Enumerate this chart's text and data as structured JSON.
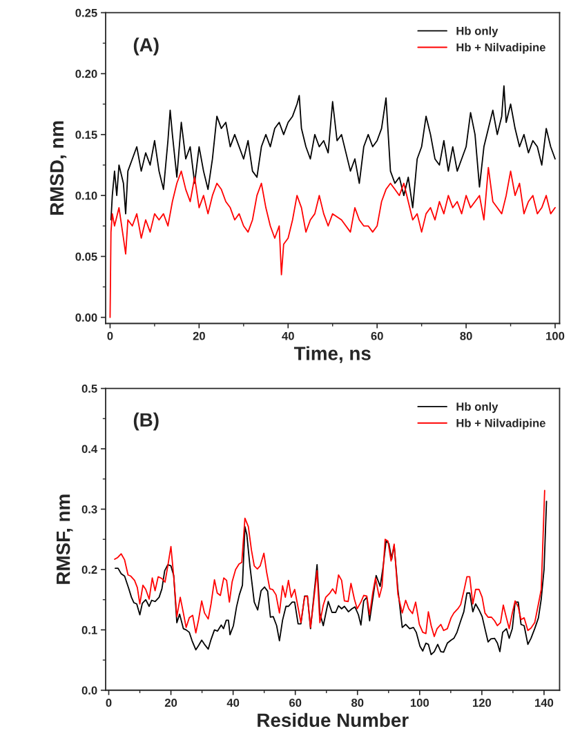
{
  "chart_data": [
    {
      "type": "line",
      "xlabel": "Time, ns",
      "ylabel": "RMSD, nm",
      "annotations": [
        "(A)"
      ],
      "legend": "top right",
      "xlim": [
        -1,
        101
      ],
      "ylim": [
        -0.005,
        0.25
      ],
      "xticks": [
        0,
        {
          "value": 10,
          "label": null
        },
        20,
        {
          "value": 30,
          "label": null
        },
        40,
        {
          "value": 50,
          "label": null
        },
        60,
        {
          "value": 70,
          "label": null
        },
        80,
        {
          "value": 90,
          "label": null
        },
        100
      ],
      "yticks": [
        {
          "value": 0,
          "label": "0.00"
        },
        {
          "value": 0.025,
          "label": null
        },
        {
          "value": 0.05,
          "label": "0.05"
        },
        {
          "value": 0.075,
          "label": null
        },
        {
          "value": 0.1,
          "label": "0.10"
        },
        {
          "value": 0.125,
          "label": null
        },
        {
          "value": 0.15,
          "label": "0.15"
        },
        {
          "value": 0.175,
          "label": null
        },
        {
          "value": 0.2,
          "label": "0.20"
        },
        {
          "value": 0.225,
          "label": null
        },
        {
          "value": 0.25,
          "label": "0.25"
        }
      ],
      "series": [
        {
          "name": "Hb only",
          "color": "#000000",
          "x": [
            0.2,
            0.5,
            1,
            1.5,
            2,
            3,
            3.5,
            4,
            5,
            6,
            7,
            8,
            9,
            10,
            11,
            12,
            13,
            13.5,
            14,
            15,
            16,
            17,
            18,
            19,
            20,
            21,
            22,
            23,
            24,
            25,
            26,
            27,
            28,
            30,
            31,
            32,
            33,
            34,
            35,
            36,
            37,
            38,
            39,
            40,
            41,
            42,
            42.5,
            43,
            44,
            45,
            46,
            47,
            48,
            49,
            50,
            51,
            52,
            53,
            54,
            55,
            56,
            57,
            58,
            59,
            60,
            61,
            62,
            63,
            64,
            65,
            66,
            67,
            68,
            69,
            70,
            71,
            72,
            73,
            74,
            75,
            76,
            77,
            78,
            79,
            80,
            81,
            82,
            83,
            84,
            85,
            86,
            87,
            88,
            88.5,
            89,
            90,
            91,
            92,
            93,
            94,
            95,
            96,
            97,
            98,
            99,
            100
          ],
          "values": [
            0.08,
            0.1,
            0.12,
            0.1,
            0.125,
            0.11,
            0.085,
            0.12,
            0.13,
            0.14,
            0.12,
            0.135,
            0.125,
            0.145,
            0.12,
            0.105,
            0.145,
            0.17,
            0.15,
            0.115,
            0.16,
            0.13,
            0.14,
            0.11,
            0.14,
            0.12,
            0.105,
            0.13,
            0.165,
            0.155,
            0.16,
            0.14,
            0.15,
            0.13,
            0.145,
            0.12,
            0.115,
            0.14,
            0.15,
            0.14,
            0.155,
            0.16,
            0.15,
            0.16,
            0.165,
            0.175,
            0.182,
            0.155,
            0.14,
            0.13,
            0.15,
            0.14,
            0.145,
            0.135,
            0.177,
            0.145,
            0.15,
            0.135,
            0.12,
            0.13,
            0.11,
            0.14,
            0.15,
            0.14,
            0.145,
            0.155,
            0.18,
            0.12,
            0.11,
            0.115,
            0.1,
            0.115,
            0.09,
            0.13,
            0.14,
            0.165,
            0.15,
            0.13,
            0.125,
            0.145,
            0.12,
            0.14,
            0.12,
            0.13,
            0.14,
            0.168,
            0.15,
            0.107,
            0.14,
            0.155,
            0.17,
            0.15,
            0.165,
            0.19,
            0.16,
            0.175,
            0.155,
            0.14,
            0.15,
            0.135,
            0.145,
            0.14,
            0.125,
            0.155,
            0.14,
            0.13
          ]
        },
        {
          "name": "Hb + Nilvadipine",
          "color": "#ff0000",
          "x": [
            0,
            0.2,
            0.5,
            1,
            2,
            3,
            3.5,
            4,
            5,
            6,
            7,
            8,
            9,
            10,
            11,
            12,
            13,
            14,
            15,
            16,
            17,
            18,
            19,
            20,
            21,
            22,
            23,
            24,
            25,
            26,
            27,
            28,
            29,
            30,
            31,
            32,
            33,
            34,
            35,
            36,
            37,
            38,
            38.5,
            39,
            40,
            41,
            42,
            43,
            44,
            45,
            46,
            47,
            48,
            49,
            50,
            52,
            54,
            55,
            56,
            57,
            58,
            59,
            60,
            61,
            62,
            63,
            64,
            65,
            66,
            67,
            68,
            69,
            70,
            71,
            72,
            73,
            74,
            75,
            76,
            77,
            78,
            79,
            80,
            81,
            82,
            83,
            84,
            85,
            86,
            87,
            88,
            89,
            90,
            91,
            92,
            93,
            94,
            95,
            96,
            97,
            98,
            99,
            100
          ],
          "values": [
            0.0,
            0.07,
            0.085,
            0.075,
            0.09,
            0.065,
            0.052,
            0.08,
            0.075,
            0.085,
            0.065,
            0.08,
            0.07,
            0.085,
            0.08,
            0.085,
            0.075,
            0.095,
            0.11,
            0.12,
            0.105,
            0.095,
            0.115,
            0.09,
            0.1,
            0.085,
            0.1,
            0.11,
            0.105,
            0.095,
            0.09,
            0.08,
            0.085,
            0.075,
            0.07,
            0.08,
            0.1,
            0.11,
            0.09,
            0.075,
            0.065,
            0.075,
            0.035,
            0.06,
            0.065,
            0.08,
            0.1,
            0.09,
            0.07,
            0.08,
            0.085,
            0.1,
            0.085,
            0.075,
            0.085,
            0.08,
            0.07,
            0.09,
            0.08,
            0.075,
            0.075,
            0.07,
            0.075,
            0.095,
            0.105,
            0.11,
            0.105,
            0.1,
            0.11,
            0.095,
            0.08,
            0.085,
            0.07,
            0.085,
            0.09,
            0.08,
            0.095,
            0.085,
            0.1,
            0.09,
            0.095,
            0.085,
            0.1,
            0.09,
            0.095,
            0.1,
            0.08,
            0.123,
            0.095,
            0.09,
            0.085,
            0.1,
            0.12,
            0.1,
            0.11,
            0.085,
            0.095,
            0.1,
            0.085,
            0.09,
            0.1,
            0.085,
            0.09
          ]
        }
      ]
    },
    {
      "type": "line",
      "xlabel": "Residue Number",
      "ylabel": "RMSF, nm",
      "annotations": [
        "(B)"
      ],
      "legend": "top right",
      "xlim": [
        -1,
        145
      ],
      "ylim": [
        0,
        0.5
      ],
      "xticks": [
        0,
        {
          "value": 10,
          "label": null
        },
        20,
        {
          "value": 30,
          "label": null
        },
        40,
        {
          "value": 50,
          "label": null
        },
        60,
        {
          "value": 70,
          "label": null
        },
        80,
        {
          "value": 90,
          "label": null
        },
        100,
        {
          "value": 110,
          "label": null
        },
        120,
        {
          "value": 130,
          "label": null
        },
        140
      ],
      "yticks": [
        {
          "value": 0,
          "label": "0.0"
        },
        {
          "value": 0.05,
          "label": null
        },
        {
          "value": 0.1,
          "label": "0.1"
        },
        {
          "value": 0.15,
          "label": null
        },
        {
          "value": 0.2,
          "label": "0.2"
        },
        {
          "value": 0.25,
          "label": null
        },
        {
          "value": 0.3,
          "label": "0.3"
        },
        {
          "value": 0.35,
          "label": null
        },
        {
          "value": 0.4,
          "label": "0.4"
        },
        {
          "value": 0.45,
          "label": null
        },
        {
          "value": 0.5,
          "label": "0.5"
        }
      ],
      "series": [
        {
          "name": "Hb only",
          "color": "#000000",
          "x": [
            2.1,
            3,
            4,
            5.1,
            6.4,
            7.3,
            8.1,
            9,
            10,
            10.8,
            11.9,
            13,
            13.8,
            14.9,
            16.2,
            17.1,
            18,
            19,
            20,
            20.9,
            21.9,
            22.8,
            24,
            24.9,
            25.9,
            26.8,
            28,
            28.9,
            29.9,
            30.8,
            32,
            32.9,
            34,
            35,
            36.2,
            36.9,
            37.8,
            38.5,
            39,
            40.1,
            41.1,
            42,
            43,
            43.8,
            44.4,
            45.4,
            46.8,
            47.9,
            49,
            50.1,
            51.1,
            52,
            52.9,
            54,
            54.9,
            55.9,
            57,
            57.8,
            59,
            59.8,
            60.9,
            61.8,
            63,
            63.9,
            64.9,
            67,
            67.9,
            69,
            70.6,
            71.8,
            73,
            73.9,
            74.9,
            75.8,
            77.1,
            78.2,
            79.2,
            80.3,
            81.1,
            82,
            83,
            83.9,
            84.9,
            86,
            87.3,
            88.2,
            89.2,
            90.1,
            91,
            91.8,
            93,
            94.4,
            95.5,
            96.8,
            98,
            98.9,
            100.1,
            101,
            102,
            102.8,
            103.7,
            104.7,
            105.8,
            106.8,
            107.7,
            108.9,
            110.1,
            111,
            112,
            113.2,
            114.2,
            115.2,
            116.1,
            117.1,
            118,
            119.1,
            120.1,
            121,
            122,
            122.9,
            124.1,
            125,
            125.8,
            126.7,
            127.9,
            128.8,
            129.8,
            130.7,
            131.7,
            132.6,
            133.6,
            134.8,
            135.8,
            137,
            138.2,
            139.1,
            140,
            140.8
          ],
          "values": [
            0.202,
            0.202,
            0.193,
            0.189,
            0.169,
            0.154,
            0.145,
            0.143,
            0.125,
            0.144,
            0.15,
            0.139,
            0.149,
            0.147,
            0.154,
            0.168,
            0.198,
            0.208,
            0.206,
            0.19,
            0.112,
            0.126,
            0.102,
            0.1,
            0.096,
            0.082,
            0.067,
            0.074,
            0.083,
            0.076,
            0.068,
            0.084,
            0.1,
            0.098,
            0.108,
            0.102,
            0.116,
            0.116,
            0.092,
            0.107,
            0.138,
            0.158,
            0.174,
            0.271,
            0.258,
            0.206,
            0.146,
            0.133,
            0.165,
            0.171,
            0.164,
            0.121,
            0.122,
            0.107,
            0.082,
            0.116,
            0.139,
            0.139,
            0.146,
            0.146,
            0.11,
            0.11,
            0.156,
            0.156,
            0.102,
            0.208,
            0.128,
            0.107,
            0.147,
            0.129,
            0.129,
            0.14,
            0.135,
            0.139,
            0.13,
            0.135,
            0.138,
            0.125,
            0.108,
            0.148,
            0.154,
            0.115,
            0.151,
            0.19,
            0.172,
            0.203,
            0.247,
            0.243,
            0.217,
            0.24,
            0.167,
            0.104,
            0.109,
            0.102,
            0.104,
            0.096,
            0.073,
            0.065,
            0.078,
            0.076,
            0.059,
            0.064,
            0.076,
            0.064,
            0.063,
            0.078,
            0.083,
            0.086,
            0.096,
            0.115,
            0.13,
            0.161,
            0.161,
            0.13,
            0.143,
            0.133,
            0.122,
            0.102,
            0.08,
            0.085,
            0.086,
            0.078,
            0.064,
            0.096,
            0.102,
            0.086,
            0.102,
            0.146,
            0.146,
            0.109,
            0.107,
            0.076,
            0.086,
            0.102,
            0.12,
            0.151,
            0.2,
            0.313
          ]
        },
        {
          "name": "Hb + Nilvadipine",
          "color": "#ff0000",
          "x": [
            1.9,
            2.9,
            4,
            5.1,
            6.2,
            7.1,
            8.3,
            9.2,
            10,
            11,
            11.9,
            13,
            14,
            14.9,
            15.9,
            17.1,
            18.1,
            19,
            20,
            20.9,
            21.9,
            23,
            24,
            24.9,
            25.9,
            27,
            28,
            28.9,
            29.9,
            30.8,
            32,
            32.9,
            34,
            34.9,
            35.9,
            37,
            37.9,
            38.8,
            39.7,
            40.8,
            41.9,
            42.8,
            43.8,
            44.9,
            45.9,
            46.8,
            47.8,
            48.7,
            49.9,
            50.8,
            51.8,
            52.7,
            53.8,
            54.9,
            55.9,
            56.8,
            57.8,
            58.7,
            59.8,
            60.9,
            61.8,
            63,
            63.9,
            64.9,
            65.8,
            67,
            67.9,
            69,
            69.8,
            71.1,
            72,
            73,
            73.9,
            74.9,
            75.8,
            77,
            77.9,
            79,
            79.9,
            81.1,
            82,
            83,
            83.9,
            84.9,
            85.8,
            87,
            87.9,
            88.9,
            89.8,
            90.8,
            91.8,
            93,
            94.4,
            95.5,
            96.5,
            97.7,
            98.7,
            99.9,
            101,
            102,
            102.8,
            103.7,
            104.7,
            105.6,
            106.8,
            107.7,
            108.9,
            110.1,
            111,
            112.3,
            113.2,
            114.2,
            115.2,
            116.1,
            117.1,
            118,
            119.1,
            120.1,
            121,
            122,
            123.1,
            124.1,
            125,
            126,
            126.9,
            127.9,
            128.8,
            129.8,
            130.7,
            131.7,
            132.6,
            133.6,
            134.8,
            135.8,
            137,
            138.2,
            139.1,
            140.2
          ],
          "values": [
            0.217,
            0.22,
            0.226,
            0.216,
            0.191,
            0.189,
            0.182,
            0.17,
            0.143,
            0.174,
            0.167,
            0.151,
            0.186,
            0.165,
            0.188,
            0.185,
            0.179,
            0.206,
            0.238,
            0.188,
            0.122,
            0.154,
            0.128,
            0.104,
            0.12,
            0.124,
            0.095,
            0.117,
            0.148,
            0.128,
            0.118,
            0.143,
            0.183,
            0.161,
            0.157,
            0.186,
            0.182,
            0.146,
            0.18,
            0.2,
            0.209,
            0.212,
            0.285,
            0.271,
            0.232,
            0.206,
            0.201,
            0.206,
            0.227,
            0.195,
            0.168,
            0.167,
            0.158,
            0.128,
            0.173,
            0.154,
            0.182,
            0.154,
            0.167,
            0.137,
            0.112,
            0.155,
            0.156,
            0.104,
            0.143,
            0.198,
            0.112,
            0.141,
            0.154,
            0.161,
            0.168,
            0.16,
            0.191,
            0.182,
            0.148,
            0.147,
            0.177,
            0.151,
            0.135,
            0.146,
            0.157,
            0.156,
            0.125,
            0.161,
            0.186,
            0.154,
            0.172,
            0.25,
            0.247,
            0.214,
            0.242,
            0.159,
            0.128,
            0.149,
            0.135,
            0.127,
            0.146,
            0.109,
            0.096,
            0.094,
            0.13,
            0.107,
            0.089,
            0.102,
            0.109,
            0.099,
            0.102,
            0.12,
            0.128,
            0.135,
            0.142,
            0.164,
            0.188,
            0.188,
            0.143,
            0.167,
            0.167,
            0.154,
            0.128,
            0.121,
            0.121,
            0.115,
            0.107,
            0.112,
            0.141,
            0.12,
            0.102,
            0.128,
            0.148,
            0.138,
            0.117,
            0.12,
            0.099,
            0.103,
            0.112,
            0.143,
            0.167,
            0.331
          ]
        }
      ]
    }
  ]
}
